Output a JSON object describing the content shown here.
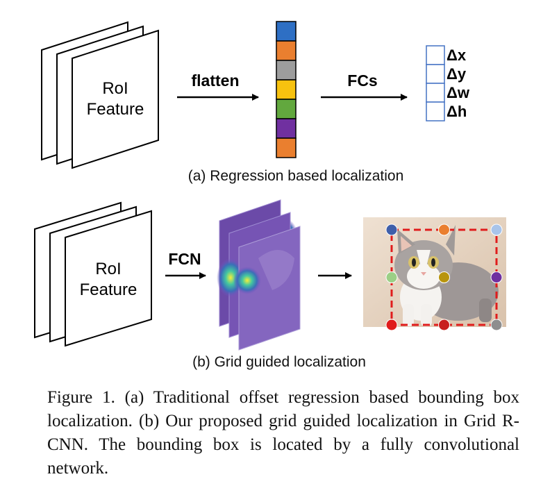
{
  "panel_a": {
    "feature_label_line1": "RoI",
    "feature_label_line2": "Feature",
    "flatten_label": "flatten",
    "fcs_label": "FCs",
    "outputs": [
      "Δx",
      "Δy",
      "Δw",
      "Δh"
    ],
    "vector_colors": [
      "#2e6fc4",
      "#ea7f2f",
      "#9d9d9d",
      "#f7c20f",
      "#62a83e",
      "#7030a0",
      "#ea7f2f"
    ],
    "subcaption": "(a) Regression based localization"
  },
  "panel_b": {
    "feature_label_line1": "RoI",
    "feature_label_line2": "Feature",
    "fcn_label": "FCN",
    "grid_point_colors": [
      "#3f5faa",
      "#ea7f2f",
      "#a8c4ea",
      "#9ccf86",
      "#b8940c",
      "#7030a0",
      "#e01c1c",
      "#c81f1f",
      "#8e8e8e"
    ],
    "box_color": "#e01c1c",
    "subcaption": "(b) Grid guided localization"
  },
  "caption": "Figure 1. (a) Traditional offset regression based bounding box localization. (b) Our proposed grid guided localization in Grid R-CNN. The bounding box is located by a fully convolutional network."
}
